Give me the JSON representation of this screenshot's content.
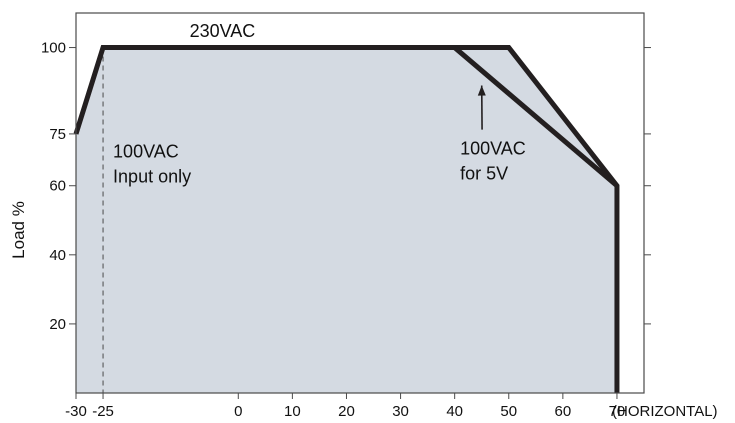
{
  "chart_data": {
    "type": "line",
    "title": "",
    "xlabel": "(HORIZONTAL)",
    "ylabel": "Load %",
    "xlim": [
      -30,
      75
    ],
    "ylim": [
      0,
      110
    ],
    "x_ticks": [
      -30,
      -25,
      0,
      10,
      20,
      30,
      40,
      50,
      60,
      70
    ],
    "x_tick_labels": [
      "-30",
      "-25",
      "0",
      "10",
      "20",
      "30",
      "40",
      "50",
      "60",
      "70"
    ],
    "y_ticks": [
      20,
      40,
      60,
      75,
      100
    ],
    "y_tick_labels": [
      "20",
      "40",
      "60",
      "75",
      "100"
    ],
    "grid": false,
    "series": [
      {
        "name": "230VAC",
        "points": [
          [
            -30,
            75
          ],
          [
            -25,
            100
          ],
          [
            50,
            100
          ],
          [
            70,
            60
          ],
          [
            70,
            0
          ]
        ]
      },
      {
        "name": "100VAC for 5V",
        "points": [
          [
            40,
            100
          ],
          [
            70,
            60
          ]
        ]
      }
    ],
    "reference_line": {
      "x": -25,
      "label": [
        "100VAC",
        "Input only"
      ]
    },
    "annotations": [
      {
        "text": "230VAC",
        "x": -9,
        "y": 103
      },
      {
        "text": [
          "100VAC",
          "for 5V"
        ],
        "x": 41,
        "y": 69,
        "arrow_to": [
          45,
          89
        ]
      }
    ],
    "colors": {
      "fill": "#d4dae2",
      "line": "#231f20",
      "axis": "#4a4a4a"
    }
  }
}
